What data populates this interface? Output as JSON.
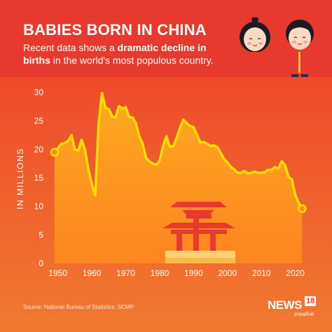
{
  "header": {
    "title": "BABIES BORN IN CHINA",
    "subtitle_pre": "Recent data shows a ",
    "subtitle_bold1": "dramatic decline in births",
    "subtitle_post": " in the world's most populous country."
  },
  "footer": {
    "source": "Source: National Bureau of Statistics, SCMP",
    "logo_main": "NEWS",
    "logo_number": "18",
    "logo_sub": "creative"
  },
  "colors": {
    "background": "#e8392e",
    "line": "#ffe000",
    "fill_top": "#ffb020",
    "fill_bottom": "#ff8a1e",
    "marker": "#ffe000",
    "axis_text": "#ffffff"
  },
  "chart_data": {
    "type": "area",
    "title": "BABIES BORN IN CHINA",
    "ylabel": "IN MILLIONS",
    "xlabel": "",
    "xlim": [
      1948,
      2024
    ],
    "ylim": [
      0,
      30
    ],
    "yticks": [
      0,
      5,
      10,
      15,
      20,
      25,
      30
    ],
    "xticks": [
      1950,
      1960,
      1970,
      1980,
      1990,
      2000,
      2010,
      2020
    ],
    "grid": false,
    "series": [
      {
        "x": [
          1949,
          1950,
          1951,
          1952,
          1953,
          1954,
          1955,
          1956,
          1957,
          1958,
          1959,
          1960,
          1961,
          1962,
          1963,
          1964,
          1965,
          1966,
          1967,
          1968,
          1969,
          1970,
          1971,
          1972,
          1973,
          1974,
          1975,
          1976,
          1977,
          1978,
          1979,
          1980,
          1981,
          1982,
          1983,
          1984,
          1985,
          1986,
          1987,
          1988,
          1989,
          1990,
          1991,
          1992,
          1993,
          1994,
          1995,
          1996,
          1997,
          1998,
          1999,
          2000,
          2001,
          2002,
          2003,
          2004,
          2005,
          2006,
          2007,
          2008,
          2009,
          2010,
          2011,
          2012,
          2013,
          2014,
          2015,
          2016,
          2017,
          2018,
          2019,
          2020,
          2021,
          2022
        ],
        "values": [
          19.5,
          20.2,
          21.0,
          21.1,
          21.5,
          22.5,
          20.0,
          19.8,
          21.7,
          19.9,
          16.5,
          13.9,
          11.9,
          24.6,
          29.9,
          27.3,
          27.1,
          25.8,
          25.6,
          27.6,
          27.2,
          27.4,
          25.7,
          25.6,
          24.6,
          22.3,
          21.0,
          18.5,
          17.9,
          17.5,
          17.3,
          18.0,
          20.6,
          22.3,
          20.5,
          20.5,
          22.0,
          23.8,
          25.2,
          24.6,
          24.1,
          23.9,
          22.6,
          21.2,
          21.3,
          21.0,
          20.6,
          20.7,
          20.4,
          19.4,
          18.3,
          17.7,
          16.9,
          16.5,
          15.9,
          15.9,
          16.2,
          15.8,
          15.9,
          16.1,
          15.9,
          15.9,
          16.0,
          16.4,
          16.4,
          16.9,
          16.6,
          17.9,
          17.2,
          15.2,
          14.7,
          12.0,
          10.6,
          9.6
        ]
      }
    ],
    "markers": [
      {
        "x": 1949,
        "y": 19.5
      },
      {
        "x": 2022,
        "y": 9.6
      }
    ]
  }
}
